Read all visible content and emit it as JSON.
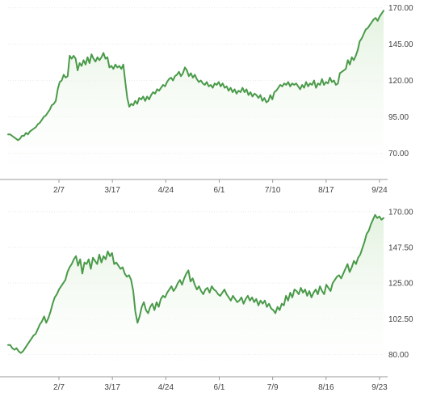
{
  "colors": {
    "line": "#4a9a4a",
    "area_top": "#e3f2df",
    "area_bottom": "#ffffff"
  },
  "chart_data": [
    {
      "type": "area",
      "xlabel": "",
      "ylabel": "",
      "x_tick_labels": [
        "2/7",
        "3/17",
        "4/24",
        "6/1",
        "7/10",
        "8/17",
        "9/24"
      ],
      "y_tick_labels": [
        "170.00",
        "145.00",
        "120.00",
        "95.00",
        "70.00"
      ],
      "y_ticks": [
        170,
        145,
        120,
        95,
        70
      ],
      "ylim": [
        52,
        172
      ],
      "y_axis_position": "right",
      "grid": true,
      "series": [
        {
          "values": [
            83,
            83,
            82,
            81,
            80,
            79,
            80,
            82,
            82,
            84,
            83,
            85,
            86,
            87,
            88,
            90,
            91,
            93,
            95,
            96,
            98,
            100,
            103,
            104,
            106,
            114,
            119,
            120,
            124,
            122,
            123,
            137,
            135,
            137,
            135,
            127,
            132,
            130,
            134,
            131,
            136,
            132,
            138,
            135,
            133,
            136,
            134,
            136,
            139,
            135,
            136,
            129,
            130,
            128,
            131,
            129,
            130,
            128,
            131,
            119,
            108,
            102,
            104,
            103,
            106,
            104,
            108,
            107,
            109,
            106,
            109,
            107,
            110,
            112,
            111,
            114,
            113,
            115,
            117,
            116,
            119,
            121,
            122,
            120,
            123,
            124,
            126,
            123,
            125,
            129,
            127,
            123,
            125,
            122,
            124,
            121,
            119,
            120,
            118,
            117,
            119,
            116,
            117,
            115,
            118,
            117,
            119,
            116,
            118,
            115,
            116,
            113,
            115,
            112,
            114,
            111,
            113,
            112,
            115,
            112,
            114,
            110,
            112,
            109,
            111,
            110,
            108,
            110,
            106,
            108,
            105,
            106,
            110,
            107,
            112,
            113,
            115,
            117,
            116,
            118,
            117,
            119,
            116,
            118,
            117,
            118,
            116,
            114,
            117,
            115,
            119,
            116,
            118,
            117,
            120,
            115,
            118,
            117,
            121,
            117,
            119,
            118,
            122,
            119,
            120,
            117,
            118,
            125,
            126,
            127,
            128,
            134,
            131,
            136,
            134,
            137,
            141,
            147,
            149,
            152,
            155,
            156,
            158,
            160,
            162,
            163,
            161,
            164,
            166,
            168
          ]
        }
      ]
    },
    {
      "type": "area",
      "xlabel": "",
      "ylabel": "",
      "x_tick_labels": [
        "2/7",
        "3/17",
        "4/24",
        "6/1",
        "7/9",
        "8/16",
        "9/23"
      ],
      "y_tick_labels": [
        "170.00",
        "147.50",
        "125.00",
        "102.50",
        "80.00"
      ],
      "y_ticks": [
        170,
        147.5,
        125,
        102.5,
        80
      ],
      "ylim": [
        66,
        174
      ],
      "y_axis_position": "right",
      "grid": true,
      "series": [
        {
          "values": [
            86,
            86,
            84,
            83,
            84,
            82,
            81,
            82,
            84,
            86,
            88,
            90,
            92,
            93,
            96,
            99,
            101,
            104,
            100,
            103,
            107,
            112,
            116,
            118,
            121,
            123,
            125,
            127,
            132,
            135,
            137,
            140,
            142,
            136,
            140,
            131,
            138,
            137,
            140,
            134,
            141,
            139,
            137,
            143,
            138,
            142,
            140,
            145,
            142,
            144,
            137,
            138,
            136,
            134,
            135,
            131,
            129,
            130,
            127,
            120,
            107,
            100,
            104,
            110,
            113,
            108,
            106,
            110,
            112,
            108,
            113,
            110,
            115,
            117,
            116,
            119,
            121,
            123,
            120,
            122,
            125,
            127,
            124,
            128,
            131,
            133,
            126,
            128,
            124,
            121,
            123,
            120,
            118,
            121,
            122,
            119,
            123,
            121,
            120,
            118,
            117,
            119,
            121,
            118,
            116,
            114,
            117,
            115,
            113,
            114,
            116,
            112,
            115,
            117,
            114,
            116,
            113,
            115,
            111,
            114,
            112,
            114,
            110,
            112,
            109,
            108,
            106,
            110,
            108,
            112,
            111,
            117,
            114,
            119,
            116,
            121,
            120,
            118,
            122,
            119,
            121,
            117,
            120,
            116,
            119,
            121,
            118,
            123,
            120,
            118,
            124,
            122,
            120,
            125,
            127,
            129,
            130,
            128,
            131,
            134,
            137,
            132,
            135,
            139,
            137,
            141,
            143,
            147,
            151,
            156,
            158,
            162,
            165,
            168,
            166,
            167,
            165,
            166
          ]
        }
      ]
    }
  ]
}
